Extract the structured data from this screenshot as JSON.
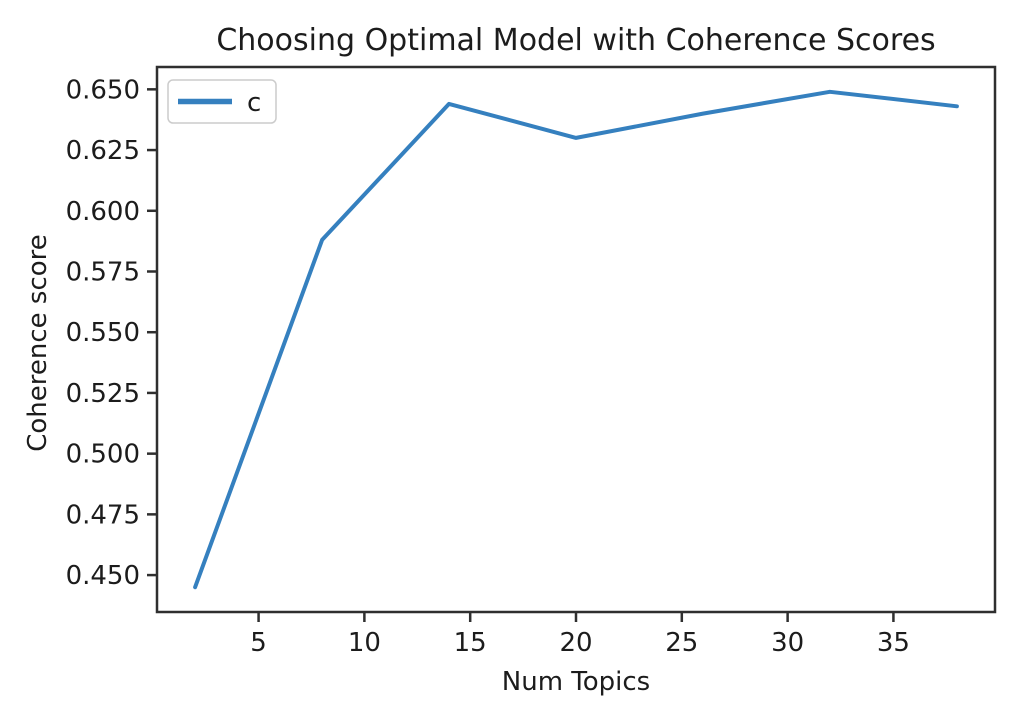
{
  "chart_data": {
    "type": "line",
    "title": "Choosing Optimal Model with Coherence Scores",
    "xlabel": "Num Topics",
    "ylabel": "Coherence score",
    "x": [
      2,
      8,
      14,
      20,
      26,
      32,
      38
    ],
    "series": [
      {
        "name": "c",
        "color": "#3580bf",
        "values": [
          0.445,
          0.588,
          0.644,
          0.63,
          0.64,
          0.649,
          0.643
        ]
      }
    ],
    "xlim": [
      0.2,
      39.8
    ],
    "ylim": [
      0.4348,
      0.6592
    ],
    "x_ticks": [
      {
        "value": 5,
        "label": "5"
      },
      {
        "value": 10,
        "label": "10"
      },
      {
        "value": 15,
        "label": "15"
      },
      {
        "value": 20,
        "label": "20"
      },
      {
        "value": 25,
        "label": "25"
      },
      {
        "value": 30,
        "label": "30"
      },
      {
        "value": 35,
        "label": "35"
      }
    ],
    "y_ticks": [
      {
        "value": 0.65,
        "label": "0.650"
      },
      {
        "value": 0.625,
        "label": "0.625"
      },
      {
        "value": 0.6,
        "label": "0.600"
      },
      {
        "value": 0.575,
        "label": "0.575"
      },
      {
        "value": 0.55,
        "label": "0.550"
      },
      {
        "value": 0.525,
        "label": "0.525"
      },
      {
        "value": 0.5,
        "label": "0.500"
      },
      {
        "value": 0.475,
        "label": "0.475"
      },
      {
        "value": 0.45,
        "label": "0.450"
      }
    ],
    "legend_position": "upper left",
    "grid": false,
    "spine_color": "#2f2f2f",
    "text_color": "#1c1c1c",
    "legend_border_color": "#cccccc"
  }
}
